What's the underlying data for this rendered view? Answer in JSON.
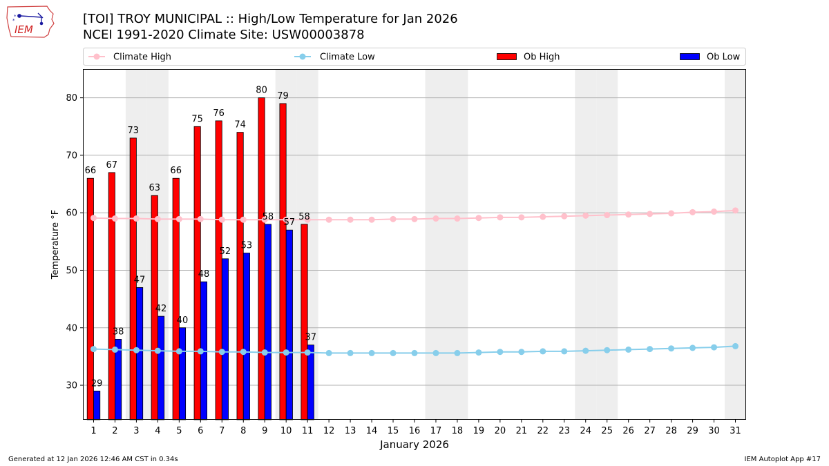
{
  "header": {
    "title_line1": "[TOI] TROY MUNICIPAL :: High/Low Temperature for Jan 2026",
    "title_line2": "NCEI 1991-2020 Climate Site: USW00003878",
    "logo_text": "IEM"
  },
  "footer": {
    "generated": "Generated at 12 Jan 2026 12:46 AM CST in 0.34s",
    "app": "IEM Autoplot App #17"
  },
  "colors": {
    "climate_high": "#ffc0cb",
    "climate_low": "#87ceeb",
    "ob_high": "#ff0000",
    "ob_low": "#0000ff",
    "weekend_band": "#eeeeee",
    "grid": "#b0b0b0"
  },
  "chart_data": {
    "type": "bar",
    "title": "[TOI] TROY MUNICIPAL :: High/Low Temperature for Jan 2026",
    "xlabel": "January 2026",
    "ylabel": "Temperature °F",
    "xlim": [
      0.5,
      31.5
    ],
    "ylim": [
      24,
      85
    ],
    "yticks": [
      30,
      40,
      50,
      60,
      70,
      80
    ],
    "grid": "horizontal",
    "legend_position": "top",
    "legend": [
      "Climate High",
      "Climate Low",
      "Ob High",
      "Ob Low"
    ],
    "days": [
      1,
      2,
      3,
      4,
      5,
      6,
      7,
      8,
      9,
      10,
      11,
      12,
      13,
      14,
      15,
      16,
      17,
      18,
      19,
      20,
      21,
      22,
      23,
      24,
      25,
      26,
      27,
      28,
      29,
      30,
      31
    ],
    "shaded_days": [
      3,
      4,
      10,
      11,
      17,
      18,
      24,
      25,
      31
    ],
    "ob_high": [
      66,
      67,
      73,
      63,
      66,
      75,
      76,
      74,
      80,
      79,
      58
    ],
    "ob_low": [
      29,
      38,
      47,
      42,
      40,
      48,
      52,
      53,
      58,
      57,
      37
    ],
    "climate_high": [
      59.1,
      59.0,
      59.0,
      58.9,
      58.9,
      58.9,
      58.8,
      58.8,
      58.8,
      58.8,
      58.8,
      58.8,
      58.8,
      58.8,
      58.9,
      58.9,
      59.0,
      59.0,
      59.1,
      59.2,
      59.2,
      59.3,
      59.4,
      59.5,
      59.6,
      59.7,
      59.8,
      59.9,
      60.1,
      60.2,
      60.4
    ],
    "climate_low": [
      36.3,
      36.2,
      36.1,
      36.0,
      35.9,
      35.9,
      35.8,
      35.8,
      35.7,
      35.7,
      35.7,
      35.6,
      35.6,
      35.6,
      35.6,
      35.6,
      35.6,
      35.6,
      35.7,
      35.8,
      35.8,
      35.9,
      35.9,
      36.0,
      36.1,
      36.2,
      36.3,
      36.4,
      36.5,
      36.6,
      36.8
    ]
  }
}
